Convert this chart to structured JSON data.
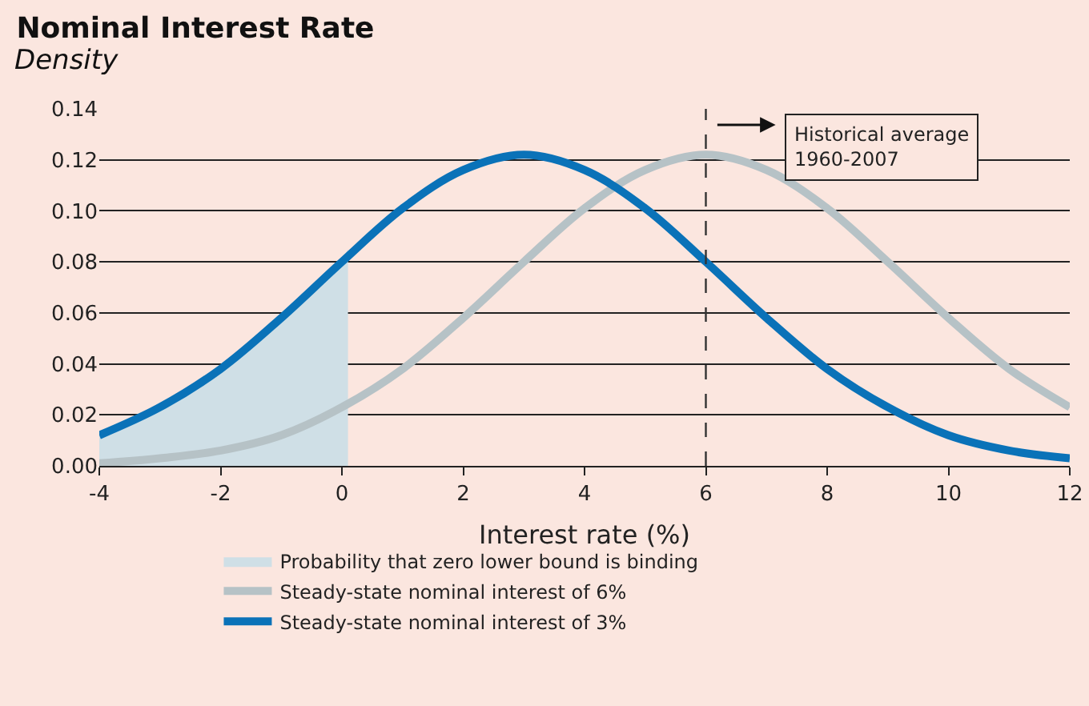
{
  "chart_data": {
    "type": "line",
    "title": "Nominal Interest Rate",
    "ylabel": "Density",
    "xlabel": "Interest rate (%)",
    "series": [
      {
        "name": "Probability that zero lower bound is binding",
        "type": "area",
        "color": "#cfdfe6",
        "x": [
          -4,
          -3,
          -2,
          -1,
          0,
          0.1
        ],
        "values": [
          0.012,
          0.023,
          0.038,
          0.058,
          0.08,
          0.085
        ]
      },
      {
        "name": "Steady-state nominal interest of 6%",
        "color": "#b6c2c6",
        "x": [
          -4,
          -3,
          -2,
          -1,
          0,
          1,
          2,
          3,
          4,
          5,
          6,
          7,
          8,
          9,
          10,
          11,
          12
        ],
        "values": [
          0.001,
          0.003,
          0.006,
          0.012,
          0.023,
          0.038,
          0.058,
          0.08,
          0.101,
          0.116,
          0.122,
          0.116,
          0.101,
          0.08,
          0.058,
          0.038,
          0.023
        ]
      },
      {
        "name": "Steady-state nominal interest of 3%",
        "color": "#0a72b8",
        "x": [
          -4,
          -3,
          -2,
          -1,
          0,
          1,
          2,
          3,
          4,
          5,
          6,
          7,
          8,
          9,
          10,
          11,
          12
        ],
        "values": [
          0.012,
          0.023,
          0.038,
          0.058,
          0.08,
          0.101,
          0.116,
          0.122,
          0.116,
          0.101,
          0.08,
          0.058,
          0.038,
          0.023,
          0.012,
          0.006,
          0.003
        ]
      }
    ],
    "xlim": [
      -4,
      12
    ],
    "xticks": [
      -4,
      -2,
      0,
      2,
      4,
      6,
      8,
      10,
      12
    ],
    "ylim": [
      0,
      0.14
    ],
    "yticks": [
      {
        "value": 0,
        "label": "0.00"
      },
      {
        "value": 0.02,
        "label": "0.02"
      },
      {
        "value": 0.04,
        "label": "0.04"
      },
      {
        "value": 0.06,
        "label": "0.06"
      },
      {
        "value": 0.08,
        "label": "0.08"
      },
      {
        "value": 0.1,
        "label": "0.10"
      },
      {
        "value": 0.12,
        "label": "0.12"
      },
      {
        "value": 0.14,
        "label": "0.14"
      }
    ],
    "ref_lines": [
      {
        "axis": "x",
        "value": 6,
        "label": "Historical average\n1960-2007",
        "line_style": "dashed",
        "color": "#333333"
      }
    ],
    "grid": "y",
    "legend": "bottom",
    "marker": "none",
    "line_style": "solid"
  }
}
